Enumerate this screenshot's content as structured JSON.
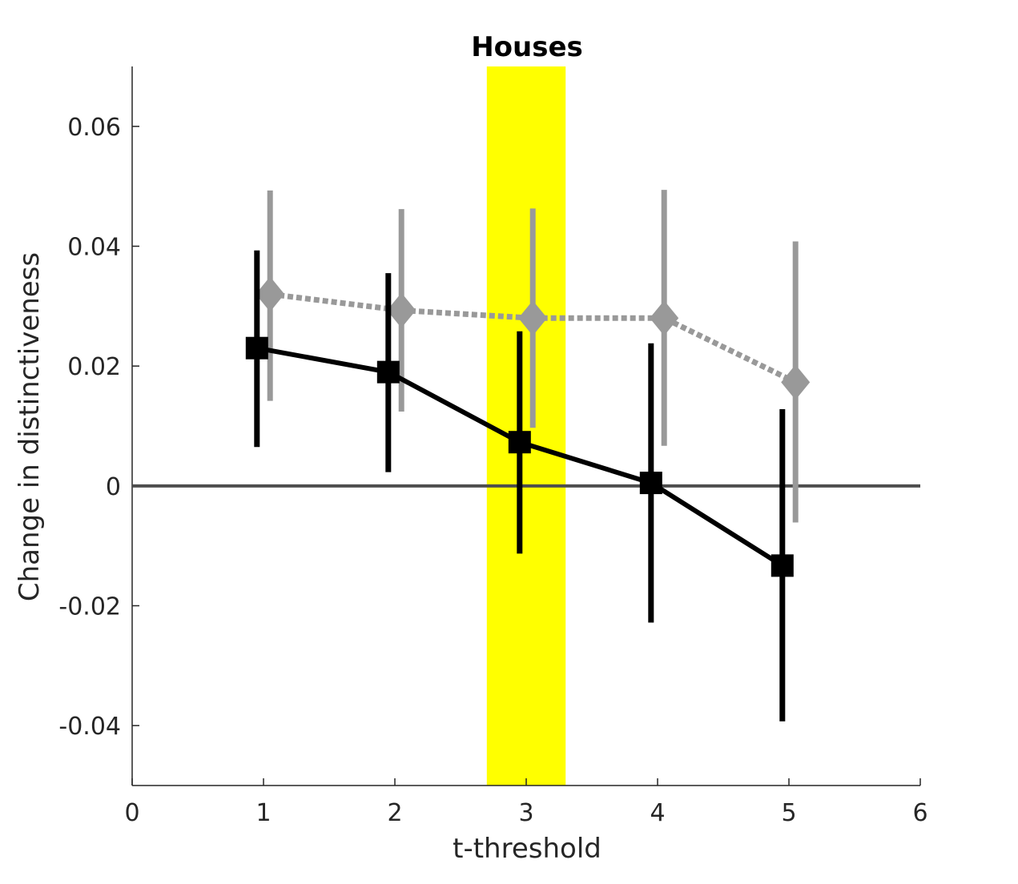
{
  "chart_data": {
    "type": "line",
    "title": "Houses",
    "xlabel": "t-threshold",
    "ylabel": "Change in distinctiveness",
    "xlim": [
      0,
      6
    ],
    "ylim": [
      -0.05,
      0.07
    ],
    "xticks": [
      "0",
      "1",
      "2",
      "3",
      "4",
      "5",
      "6"
    ],
    "yticks": [
      "-0.04",
      "-0.02",
      "0",
      "0.02",
      "0.04",
      "0.06"
    ],
    "highlight_band": {
      "x_from": 2.7,
      "x_to": 3.3,
      "color": "#ffff00"
    },
    "reference_line": {
      "y": 0,
      "color": "#4d4d4d"
    },
    "series": [
      {
        "style": "solid",
        "marker": "square",
        "color": "#000000",
        "x": [
          0.95,
          1.95,
          2.95,
          3.95,
          4.95
        ],
        "y": [
          0.023,
          0.019,
          0.0073,
          0.0005,
          -0.0133
        ],
        "err_low": [
          0.0065,
          0.0023,
          -0.0113,
          -0.0228,
          -0.0393
        ],
        "err_high": [
          0.0393,
          0.0355,
          0.0258,
          0.0238,
          0.0128
        ]
      },
      {
        "style": "dotted",
        "marker": "diamond",
        "color": "#999999",
        "x": [
          1.05,
          2.05,
          3.05,
          4.05,
          5.05
        ],
        "y": [
          0.032,
          0.0293,
          0.028,
          0.028,
          0.0173
        ],
        "err_low": [
          0.0142,
          0.0124,
          0.0097,
          0.0067,
          -0.0061
        ],
        "err_high": [
          0.0493,
          0.0462,
          0.0463,
          0.0494,
          0.0408
        ]
      }
    ],
    "grid": false,
    "legend": "none"
  }
}
